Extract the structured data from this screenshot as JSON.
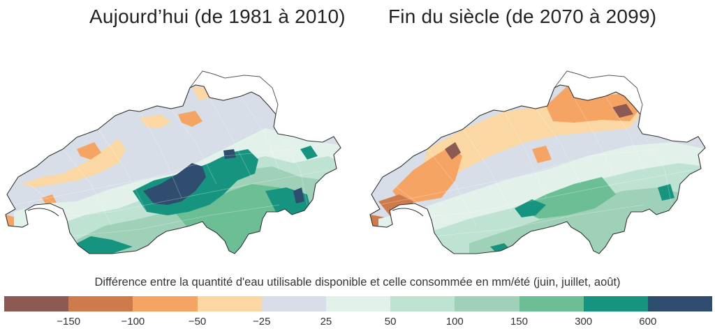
{
  "maps": {
    "left": {
      "title": "Aujourd’hui (de 1981 à 2010)"
    },
    "right": {
      "title": "Fin du siècle (de 2070 à 2099)"
    }
  },
  "legend": {
    "caption": "Différence entre la quantité d'eau utilisable disponible et celle consommée en mm/été (juin, juillet, août)",
    "colors": [
      "#8c5a52",
      "#cf7a4a",
      "#f5a463",
      "#fbd7a4",
      "#d8dee8",
      "#e2f2ea",
      "#bfe3d3",
      "#9ed1b8",
      "#6cbf94",
      "#17947f",
      "#2f4d6e"
    ],
    "ticks": [
      "−150",
      "−100",
      "−50",
      "−25",
      "25",
      "50",
      "100",
      "150",
      "300",
      "600"
    ]
  },
  "colors": {
    "outline": "#333333",
    "border_gray": "#b9b9b9"
  }
}
